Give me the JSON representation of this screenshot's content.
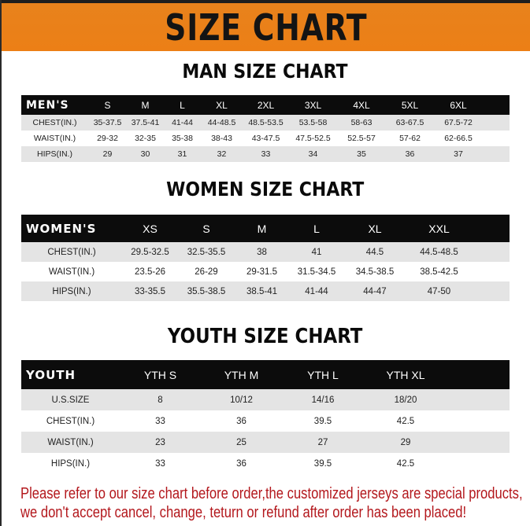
{
  "banner_title": "SIZE CHART",
  "colors": {
    "banner": "#ec7f16",
    "header_row": "#0c0c0c",
    "alt_row": "#e4e4e4",
    "notice": "#b3171c"
  },
  "men": {
    "title": "MAN SIZE CHART",
    "header": [
      "MEN'S",
      "S",
      "M",
      "L",
      "XL",
      "2XL",
      "3XL",
      "4XL",
      "5XL",
      "6XL"
    ],
    "rows": [
      [
        "CHEST(IN.)",
        "35-37.5",
        "37.5-41",
        "41-44",
        "44-48.5",
        "48.5-53.5",
        "53.5-58",
        "58-63",
        "63-67.5",
        "67.5-72"
      ],
      [
        "WAIST(IN.)",
        "29-32",
        "32-35",
        "35-38",
        "38-43",
        "43-47.5",
        "47.5-52.5",
        "52.5-57",
        "57-62",
        "62-66.5"
      ],
      [
        "HIPS(IN.)",
        "29",
        "30",
        "31",
        "32",
        "33",
        "34",
        "35",
        "36",
        "37"
      ]
    ]
  },
  "women": {
    "title": "WOMEN SIZE CHART",
    "header": [
      "WOMEN'S",
      "XS",
      "S",
      "M",
      "L",
      "XL",
      "XXL"
    ],
    "rows": [
      [
        "CHEST(IN.)",
        "29.5-32.5",
        "32.5-35.5",
        "38",
        "41",
        "44.5",
        "44.5-48.5"
      ],
      [
        "WAIST(IN.)",
        "23.5-26",
        "26-29",
        "29-31.5",
        "31.5-34.5",
        "34.5-38.5",
        "38.5-42.5"
      ],
      [
        "HIPS(IN.)",
        "33-35.5",
        "35.5-38.5",
        "38.5-41",
        "41-44",
        "44-47",
        "47-50"
      ]
    ]
  },
  "youth": {
    "title": "YOUTH SIZE CHART",
    "header": [
      "YOUTH",
      "YTH S",
      "YTH M",
      "YTH L",
      "YTH XL"
    ],
    "rows": [
      [
        "U.S.SIZE",
        "8",
        "10/12",
        "14/16",
        "18/20"
      ],
      [
        "CHEST(IN.)",
        "33",
        "36",
        "39.5",
        "42.5"
      ],
      [
        "WAIST(IN.)",
        "23",
        "25",
        "27",
        "29"
      ],
      [
        "HIPS(IN.)",
        "33",
        "36",
        "39.5",
        "42.5"
      ]
    ]
  },
  "notice": {
    "line1": "Please refer to our size chart before order,the customized jerseys are special products,",
    "line2": "we don't accept cancel, change, teturn or refund after order has been placed!"
  }
}
